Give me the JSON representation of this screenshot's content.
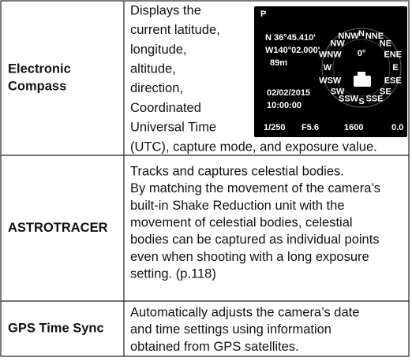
{
  "table": {
    "rows": [
      {
        "feature": [
          "Electronic",
          "Compass"
        ],
        "description": [
          "Displays the",
          "current latitude,",
          "longitude,",
          "altitude,",
          "direction,",
          "Coordinated",
          "Universal Time",
          "(UTC), capture mode, and exposure value."
        ]
      },
      {
        "feature": [
          "ASTROTRACER"
        ],
        "description": [
          "Tracks and captures celestial bodies.",
          "By matching the movement of the camera’s",
          "built-in Shake Reduction unit with the",
          "movement of celestial bodies, celestial",
          "bodies can be captured as individual points",
          "even when shooting with a long exposure",
          "setting. (p.118)"
        ]
      },
      {
        "feature": [
          "GPS Time Sync"
        ],
        "description": [
          "Automatically adjusts the camera’s date",
          "and time settings using information",
          "obtained from GPS satellites."
        ]
      }
    ]
  },
  "screen": {
    "mode": "P",
    "latitude": "N 36°45.410'",
    "longitude": "W140°02.000'",
    "altitude": "89m",
    "date": "02/02/2015",
    "time": "10:00:00",
    "shutter": "1/250",
    "aperture": "F5.6",
    "iso": "1600",
    "exposure": "0.0",
    "heading": "0°",
    "compass": [
      "N",
      "NNE",
      "NE",
      "ENE",
      "E",
      "ESE",
      "SE",
      "SSE",
      "S",
      "SSW",
      "SW",
      "WSW",
      "W",
      "WNW",
      "NW",
      "NNW"
    ]
  }
}
